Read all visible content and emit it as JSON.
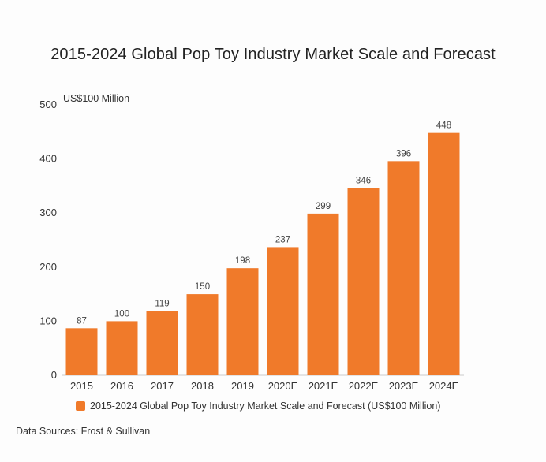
{
  "title": "2015-2024 Global Pop Toy Industry Market Scale and Forecast",
  "source": "Data Sources: Frost & Sullivan",
  "colors": {
    "bar": "#f07a2a",
    "axis_text": "#333333",
    "value_text": "#444444"
  },
  "chart_data": {
    "type": "bar",
    "title": "2015-2024 Global Pop Toy Industry Market Scale and Forecast",
    "unit_label": "US$100 Million",
    "categories": [
      "2015",
      "2016",
      "2017",
      "2018",
      "2019",
      "2020E",
      "2021E",
      "2022E",
      "2023E",
      "2024E"
    ],
    "series": [
      {
        "name": "2015-2024 Global Pop Toy Industry Market Scale and Forecast (US$100 Million)",
        "values": [
          87,
          100,
          119,
          150,
          198,
          237,
          299,
          346,
          396,
          448
        ]
      }
    ],
    "y_ticks": [
      0,
      100,
      200,
      300,
      400,
      500
    ],
    "ylim": [
      0,
      500
    ],
    "grid": false,
    "legend": "bottom"
  }
}
